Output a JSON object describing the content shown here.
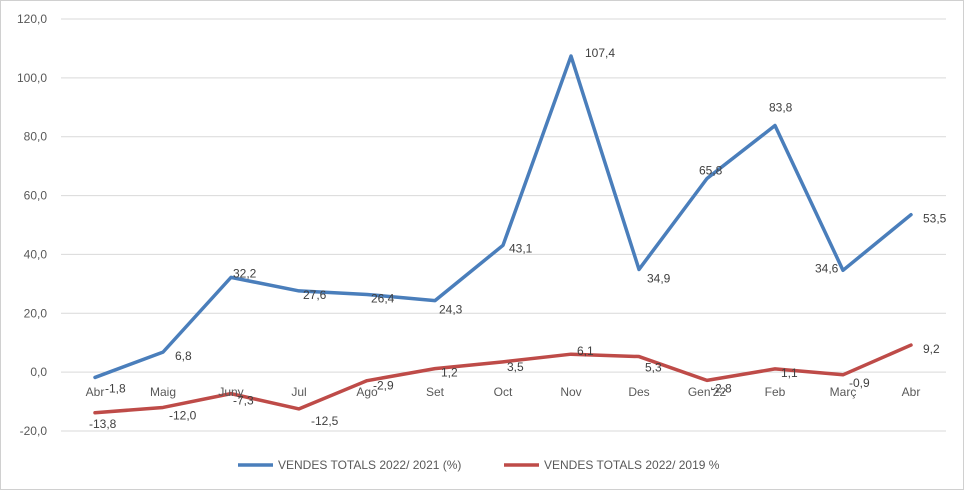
{
  "chart_data": {
    "type": "line",
    "categories": [
      "Abr",
      "Maig",
      "Juny",
      "Jul",
      "Ago",
      "Set",
      "Oct",
      "Nov",
      "Des",
      "Gen'22",
      "Feb",
      "Març",
      "Abr"
    ],
    "ylim": [
      -20,
      120
    ],
    "yticks": [
      "-20,0",
      "0,0",
      "20,0",
      "40,0",
      "60,0",
      "80,0",
      "100,0",
      "120,0"
    ],
    "grid": true,
    "legend_position": "bottom",
    "series": [
      {
        "name": "VENDES TOTALS 2022/ 2021 (%)",
        "color": "#4a7ebb",
        "values": [
          -1.8,
          6.8,
          32.2,
          27.6,
          26.4,
          24.3,
          43.1,
          107.4,
          34.9,
          65.8,
          83.8,
          34.6,
          53.5
        ],
        "labels": [
          "-1,8",
          "6,8",
          "32,2",
          "27,6",
          "26,4",
          "24,3",
          "43,1",
          "107,4",
          "34,9",
          "65,8",
          "83,8",
          "34,6",
          "53,5"
        ]
      },
      {
        "name": "VENDES TOTALS 2022/ 2019 %",
        "color": "#be4b48",
        "values": [
          -13.8,
          -12.0,
          -7.3,
          -12.5,
          -2.9,
          1.2,
          3.5,
          6.1,
          5.3,
          -2.8,
          1.1,
          -0.9,
          9.2
        ],
        "labels": [
          "-13,8",
          "-12,0",
          "-7,3",
          "-12,5",
          "-2,9",
          "1,2",
          "3,5",
          "6,1",
          "5,3",
          "-2,8",
          "1,1",
          "-0,9",
          "9,2"
        ]
      }
    ]
  }
}
